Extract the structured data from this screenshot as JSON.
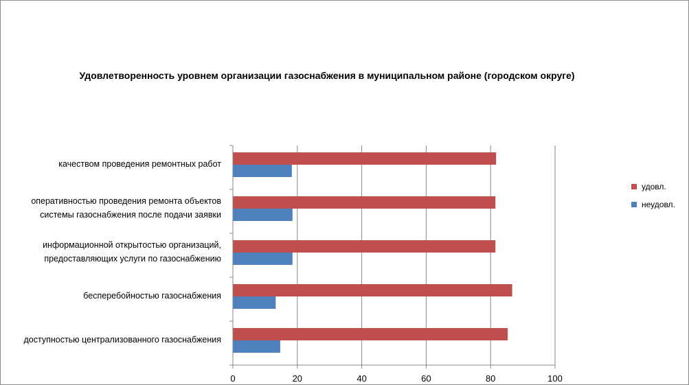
{
  "chart_data": {
    "type": "bar",
    "orientation": "horizontal",
    "title": "Удовлетворенность уровнем организации газоснабжения в муниципальном районе (городском округе)",
    "categories": [
      "качеством  проведения  ремонтных работ",
      "оперативностью  проведения  ремонта объектов системы газоснабжения после подачи заявки",
      "информационной открытостью организаций, предоставляющих услуги по газоснабжению",
      "бесперебойностью  газоснабжения",
      "доступностью централизованного газоснабжения"
    ],
    "category_lines": [
      [
        "качеством  проведения  ремонтных работ"
      ],
      [
        "оперативностью  проведения  ремонта объектов",
        "системы газоснабжения после подачи заявки"
      ],
      [
        "информационной открытостью организаций,",
        "предоставляющих услуги по газоснабжению"
      ],
      [
        "бесперебойностью  газоснабжения"
      ],
      [
        "доступностью централизованного газоснабжения"
      ]
    ],
    "series": [
      {
        "name": "удовл.",
        "color": "#c0504d",
        "values": [
          81.7,
          81.5,
          81.5,
          86.7,
          85.3
        ]
      },
      {
        "name": "неудовл.",
        "color": "#4f81bd",
        "values": [
          18.3,
          18.5,
          18.5,
          13.3,
          14.7
        ]
      }
    ],
    "xlim": [
      0,
      100
    ],
    "xticks": [
      0,
      20,
      40,
      60,
      80,
      100
    ],
    "grid": true,
    "legend_position": "right"
  }
}
